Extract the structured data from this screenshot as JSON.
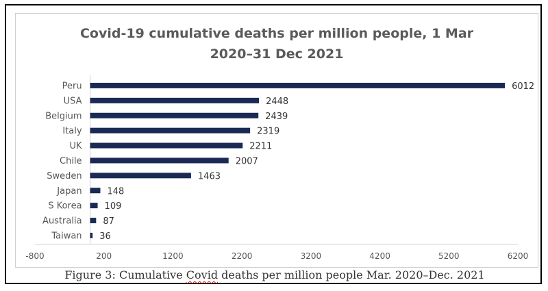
{
  "chart_data": {
    "type": "bar",
    "orientation": "horizontal",
    "title_lines": [
      "Covid-19 cumulative deaths per million people, 1 Mar",
      "2020–31 Dec 2021"
    ],
    "categories": [
      "Peru",
      "USA",
      "Belgium",
      "Italy",
      "UK",
      "Chile",
      "Sweden",
      "Japan",
      "S Korea",
      "Australia",
      "Taiwan"
    ],
    "values": [
      6012,
      2448,
      2439,
      2319,
      2211,
      2007,
      1463,
      148,
      109,
      87,
      36
    ],
    "xlim": [
      -800,
      6200
    ],
    "xticks": [
      -800,
      200,
      1200,
      2200,
      3200,
      4200,
      5200,
      6200
    ],
    "xlabel": "",
    "ylabel": "",
    "grid": false,
    "bar_color": "#1b2a55"
  },
  "caption": {
    "before": "Figure 3: Cumulative ",
    "flagged": "Covid",
    "after": " deaths per million people Mar. 2020–Dec. 2021"
  }
}
